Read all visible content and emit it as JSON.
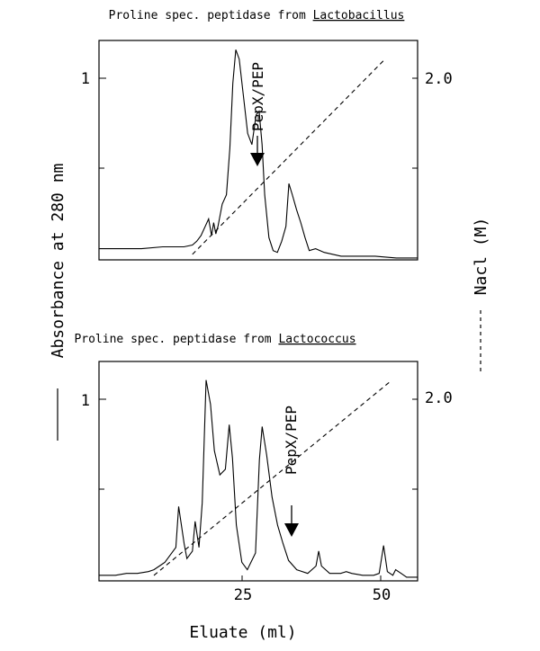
{
  "chart_data": [
    {
      "type": "line",
      "title_prefix": "Proline spec. peptidase from ",
      "title_organism": "Lactobacillus",
      "y_ticks": [
        "1"
      ],
      "y2_ticks": [
        "2.0"
      ],
      "x_ticks": [],
      "annotation": "PepX/PEP",
      "xlim": [
        -15,
        60
      ],
      "ylim": [
        0,
        1.18
      ],
      "y2lim": [
        0,
        2.4
      ],
      "series": [
        {
          "style": "solid",
          "points": [
            [
              -15,
              0.06
            ],
            [
              -5,
              0.06
            ],
            [
              0,
              0.07
            ],
            [
              5,
              0.07
            ],
            [
              7,
              0.08
            ],
            [
              8,
              0.1
            ],
            [
              9,
              0.13
            ],
            [
              10,
              0.18
            ],
            [
              10.8,
              0.22
            ],
            [
              11.5,
              0.13
            ],
            [
              12,
              0.2
            ],
            [
              12.5,
              0.14
            ],
            [
              13,
              0.18
            ],
            [
              14,
              0.3
            ],
            [
              15,
              0.35
            ],
            [
              15.8,
              0.6
            ],
            [
              16.5,
              0.95
            ],
            [
              17.2,
              1.13
            ],
            [
              18,
              1.08
            ],
            [
              19,
              0.88
            ],
            [
              20,
              0.68
            ],
            [
              21,
              0.62
            ],
            [
              22,
              0.78
            ],
            [
              22.7,
              0.8
            ],
            [
              23.4,
              0.62
            ],
            [
              24,
              0.35
            ],
            [
              25,
              0.12
            ],
            [
              26,
              0.05
            ],
            [
              27,
              0.04
            ],
            [
              28,
              0.1
            ],
            [
              29,
              0.18
            ],
            [
              29.7,
              0.41
            ],
            [
              30.5,
              0.35
            ],
            [
              31.5,
              0.27
            ],
            [
              32.5,
              0.2
            ],
            [
              33.5,
              0.12
            ],
            [
              34.5,
              0.05
            ],
            [
              36,
              0.06
            ],
            [
              38,
              0.04
            ],
            [
              40,
              0.03
            ],
            [
              42,
              0.02
            ],
            [
              46,
              0.02
            ],
            [
              50,
              0.02
            ],
            [
              55,
              0.01
            ],
            [
              60,
              0.01
            ]
          ]
        },
        {
          "style": "dashed",
          "points": [
            [
              7,
              0.06
            ],
            [
              52,
              2.18
            ]
          ]
        }
      ]
    },
    {
      "type": "line",
      "title_prefix": "Proline spec. peptidase from ",
      "title_organism": "Lactococcus",
      "y_ticks": [
        "1"
      ],
      "y2_ticks": [
        "2.0"
      ],
      "x_ticks": [
        "25",
        "50"
      ],
      "annotation": "PepX/PEP",
      "xlim": [
        0,
        58
      ],
      "ylim": [
        0,
        1.18
      ],
      "y2lim": [
        0,
        2.4
      ],
      "series": [
        {
          "style": "solid",
          "points": [
            [
              0,
              0.03
            ],
            [
              3,
              0.03
            ],
            [
              5,
              0.04
            ],
            [
              7,
              0.04
            ],
            [
              9,
              0.05
            ],
            [
              10,
              0.06
            ],
            [
              11,
              0.08
            ],
            [
              12,
              0.1
            ],
            [
              13,
              0.14
            ],
            [
              14,
              0.18
            ],
            [
              14.5,
              0.4
            ],
            [
              15.5,
              0.2
            ],
            [
              16,
              0.12
            ],
            [
              17,
              0.16
            ],
            [
              17.5,
              0.32
            ],
            [
              18.2,
              0.18
            ],
            [
              18.8,
              0.42
            ],
            [
              19.5,
              1.08
            ],
            [
              20.3,
              0.95
            ],
            [
              21,
              0.7
            ],
            [
              22,
              0.57
            ],
            [
              23,
              0.6
            ],
            [
              23.7,
              0.84
            ],
            [
              24.3,
              0.66
            ],
            [
              25,
              0.3
            ],
            [
              26,
              0.1
            ],
            [
              27,
              0.06
            ],
            [
              28.5,
              0.15
            ],
            [
              29.2,
              0.65
            ],
            [
              29.7,
              0.83
            ],
            [
              30.5,
              0.68
            ],
            [
              31.5,
              0.45
            ],
            [
              32.5,
              0.3
            ],
            [
              33.5,
              0.2
            ],
            [
              34.5,
              0.11
            ],
            [
              36,
              0.06
            ],
            [
              38,
              0.04
            ],
            [
              39.5,
              0.08
            ],
            [
              40,
              0.16
            ],
            [
              40.5,
              0.08
            ],
            [
              42,
              0.04
            ],
            [
              44,
              0.04
            ],
            [
              45,
              0.05
            ],
            [
              46,
              0.04
            ],
            [
              48,
              0.03
            ],
            [
              50,
              0.03
            ],
            [
              51,
              0.04
            ],
            [
              51.8,
              0.19
            ],
            [
              52.5,
              0.05
            ],
            [
              53.5,
              0.03
            ],
            [
              54,
              0.06
            ],
            [
              55,
              0.04
            ],
            [
              56,
              0.02
            ],
            [
              58,
              0.02
            ]
          ]
        },
        {
          "style": "dashed",
          "points": [
            [
              10,
              0.06
            ],
            [
              53,
              2.18
            ]
          ]
        }
      ]
    }
  ],
  "shared": {
    "ylabel": "Absorbance at 280 nm",
    "y2label": "Nacl (M)",
    "xlabel": "Eluate (ml)"
  }
}
